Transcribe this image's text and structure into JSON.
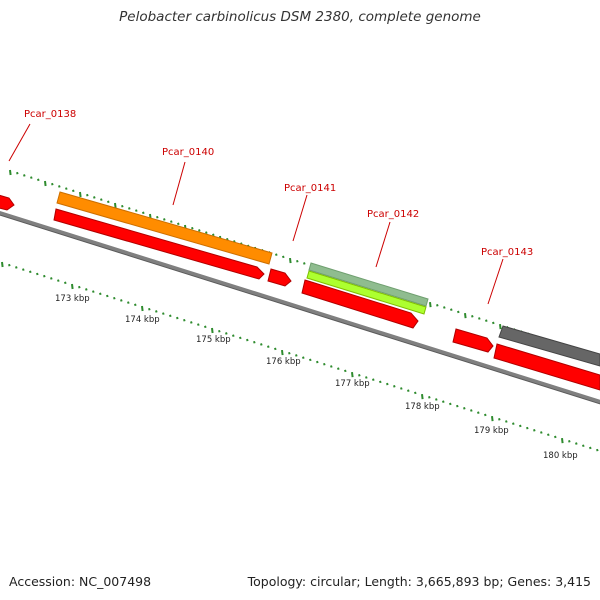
{
  "title": "Pelobacter carbinolicus DSM 2380, complete genome",
  "footer": {
    "accession": "Accession: NC_007498",
    "summary": "Topology: circular; Length: 3,665,893 bp; Genes: 3,415"
  },
  "colors": {
    "backbone": "#808080",
    "tick": "#2e8b2e",
    "gene_label": "#cc0000",
    "cds": "#ff0000",
    "orange_feature": "#ff8c00",
    "gray_green_feature": "#8fbc8f",
    "lime_feature": "#9acd32",
    "dark_gray_feature": "#555555"
  },
  "scale_labels": [
    "173 kbp",
    "174 kbp",
    "175 kbp",
    "176 kbp",
    "177 kbp",
    "178 kbp",
    "179 kbp",
    "180 kbp"
  ],
  "gene_labels": [
    "Pcar_0138",
    "Pcar_0140",
    "Pcar_0141",
    "Pcar_0142",
    "Pcar_0143"
  ]
}
